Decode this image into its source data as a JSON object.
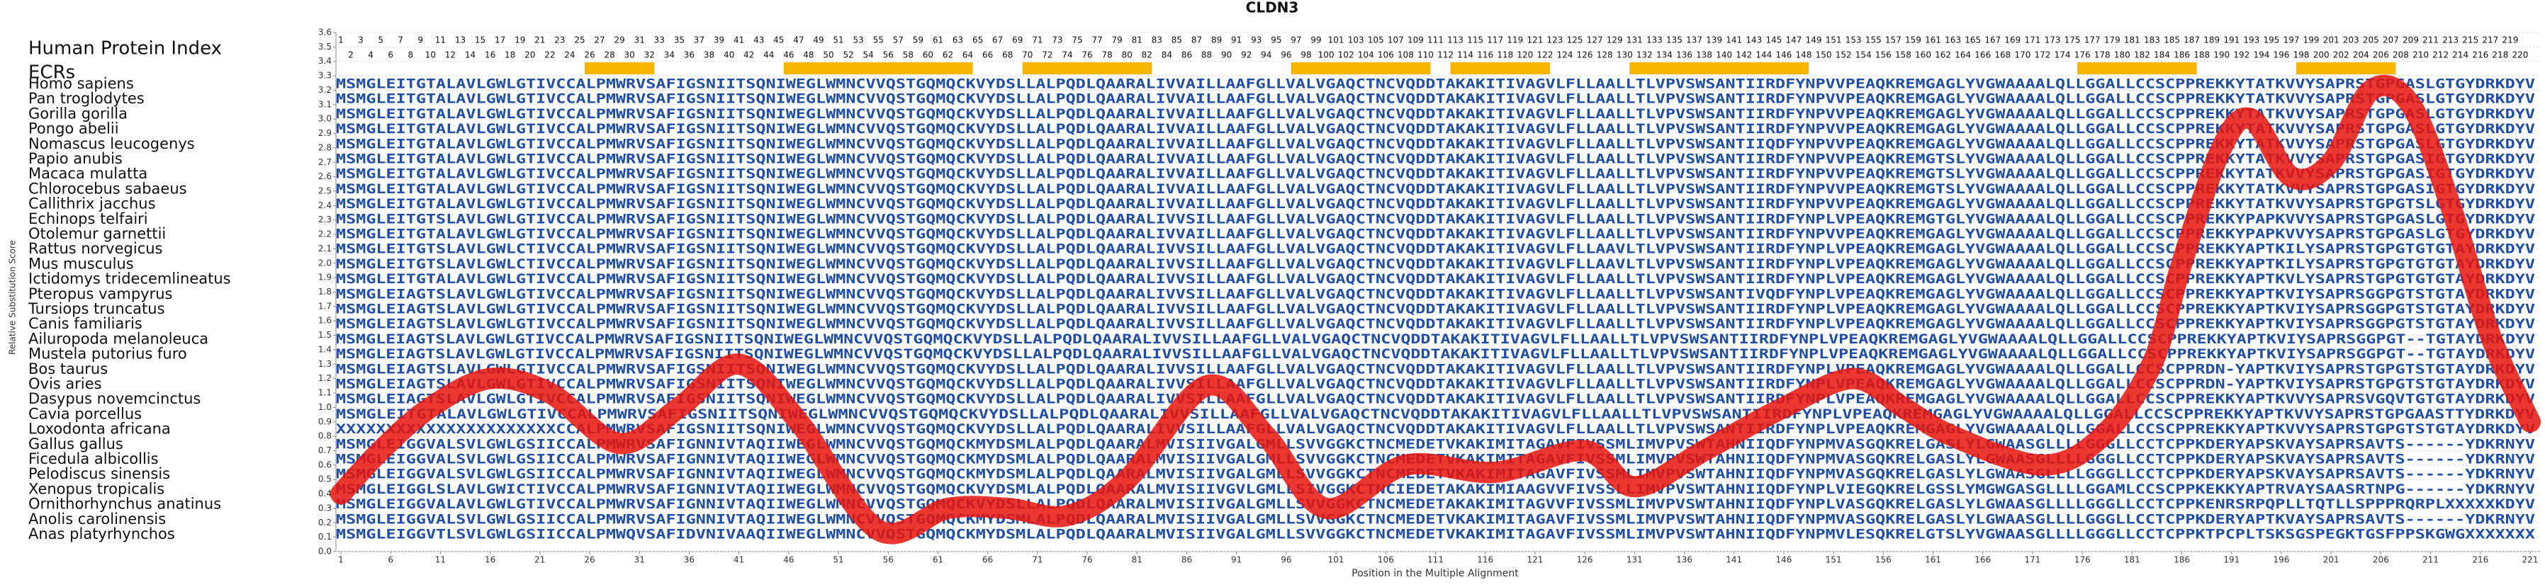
{
  "chart_data": {
    "type": "line",
    "title": "CLDN3",
    "x_label": "Position in the Multiple Alignment",
    "y_label": "Relative Substitution Score",
    "xlim": [
      1,
      221
    ],
    "ylim": [
      0,
      3.6
    ],
    "xticks": [
      1,
      6,
      11,
      16,
      21,
      26,
      31,
      36,
      41,
      46,
      51,
      56,
      61,
      66,
      71,
      76,
      81,
      86,
      91,
      96,
      101,
      106,
      111,
      116,
      121,
      126,
      131,
      136,
      141,
      146,
      151,
      156,
      161,
      166,
      171,
      176,
      181,
      186,
      191,
      196,
      201,
      206,
      211,
      216,
      221
    ],
    "yticks": [
      {
        "value": 0,
        "label": "0.0"
      },
      0.1,
      0.2,
      0.3,
      0.4,
      0.5,
      0.6,
      0.7,
      0.8,
      0.9,
      {
        "value": 1,
        "label": "1.0"
      },
      1.1,
      1.2,
      1.3,
      1.4,
      1.5,
      1.6,
      1.7,
      1.8,
      1.9,
      {
        "value": 2,
        "label": "2.0"
      },
      2.1,
      2.2,
      2.3,
      2.4,
      2.5,
      2.6,
      2.7,
      2.8,
      2.9,
      {
        "value": 3,
        "label": "3.0"
      },
      3.1,
      3.2,
      3.3,
      3.4,
      3.5,
      3.6
    ],
    "grid": true,
    "series": [
      {
        "color": "#e8140c",
        "x": [
          1,
          5,
          10,
          16,
          22,
          29,
          35,
          41,
          47,
          55,
          62,
          68,
          74,
          80,
          88,
          94,
          100,
          108,
          117,
          126,
          131,
          138,
          146,
          153,
          158,
          163,
          172,
          178,
          183,
          186,
          190,
          193,
          197,
          201,
          205,
          209,
          213,
          217,
          221
        ],
        "values": [
          0.4,
          0.7,
          1.0,
          1.2,
          1.1,
          0.75,
          1.0,
          1.3,
          0.9,
          0.15,
          0.3,
          0.3,
          0.25,
          0.5,
          1.15,
          0.8,
          0.3,
          0.6,
          0.55,
          0.7,
          0.45,
          0.7,
          1.0,
          1.2,
          1.0,
          0.8,
          0.6,
          0.8,
          1.3,
          2.0,
          2.8,
          3.0,
          2.6,
          2.7,
          3.2,
          3.1,
          2.4,
          1.5,
          0.9
        ]
      }
    ],
    "protein_index_label": "Human Protein Index",
    "protein_index": [
      1,
      2,
      3,
      4,
      5,
      6,
      7,
      8,
      9,
      10,
      11,
      12,
      13,
      14,
      15,
      16,
      17,
      18,
      19,
      20,
      21,
      22,
      23,
      24,
      25,
      26,
      27,
      28,
      29,
      30,
      31,
      32,
      33,
      34,
      35,
      36,
      37,
      38,
      39,
      40,
      41,
      42,
      43,
      44,
      45,
      46,
      47,
      48,
      49,
      50,
      51,
      52,
      53,
      54,
      55,
      56,
      57,
      58,
      59,
      60,
      61,
      62,
      63,
      64,
      65,
      66,
      67,
      68,
      69,
      70,
      71,
      72,
      73,
      74,
      75,
      76,
      77,
      78,
      79,
      80,
      81,
      82,
      83,
      84,
      85,
      86,
      87,
      88,
      89,
      90,
      91,
      92,
      93,
      94,
      95,
      96,
      97,
      98,
      99,
      100,
      101,
      102,
      103,
      104,
      105,
      106,
      107,
      108,
      109,
      110,
      111,
      112,
      113,
      114,
      115,
      116,
      117,
      118,
      119,
      120,
      121,
      122,
      123,
      124,
      125,
      126,
      127,
      128,
      129,
      130,
      131,
      132,
      133,
      134,
      135,
      136,
      137,
      138,
      139,
      140,
      141,
      142,
      143,
      144,
      145,
      146,
      147,
      148,
      149,
      150,
      151,
      152,
      153,
      154,
      155,
      156,
      157,
      158,
      159,
      160,
      161,
      162,
      163,
      164,
      165,
      166,
      167,
      168,
      169,
      170,
      171,
      172,
      173,
      174,
      175,
      176,
      177,
      178,
      179,
      180,
      181,
      182,
      183,
      184,
      185,
      186,
      187,
      188,
      189,
      190,
      191,
      192,
      193,
      194,
      195,
      196,
      197,
      198,
      199,
      200,
      201,
      202,
      203,
      204,
      205,
      206,
      207,
      208,
      209,
      210,
      211,
      212,
      213,
      214,
      215,
      216,
      217,
      218,
      219,
      220
    ],
    "ecr_label": "ECRs",
    "ecrs": [
      [
        26,
        32
      ],
      [
        46,
        64
      ],
      [
        70,
        82
      ],
      [
        97,
        110
      ],
      [
        113,
        122
      ],
      [
        131,
        148
      ],
      [
        176,
        187
      ],
      [
        198,
        207
      ]
    ],
    "alignment": [
      {
        "species": "Homo sapiens",
        "sequence": "MSMGLEITGTALAVLGWLGTIVCCALPMWRVSAFIGSNIITSQNIWEGLWMNCVVQSTGQMQCKVYDSLLALPQDLQAARALIVVAILLAAFGLLVALVGAQCTNCVQDDTAKAKITIVAGVLFLLAALLTLVPVSWSANTIIRDFYNPVVPEAQKREMGAGLYVGWAAAALQLLGGALLCCSCPPREKKYTATKVVYSAPRSTGPGASLGTGYDRKDYV"
      },
      {
        "species": "Pan troglodytes",
        "sequence": "MSMGLEITGTALAVLGWLGTIVCCALPMWRVSAFIGSNIITSQNIWEGLWMNCVVQSTGQMQCKVYDSLLALPQDLQAARALIVVAILLAAFGLLVALVGAQCTNCVQDDTAKAKITIVAGVLFLLAALLTLVPVSWSANTIIRDFYNPVVPEAQKREMGAGLYVGWAAAALQLLGGALLCCSCPPREKKYTATKVVYSAPRSTGPGASLGTGYDRKDYV"
      },
      {
        "species": "Gorilla gorilla",
        "sequence": "MSMGLEITGTALAVLGWLGTIVCCALPMWRVSAFIGSNIITSQNIWEGLWMNCVVQSTGQMQCKVYDSLLALPQDLQAARALIVVAILLAAFGLLVALVGAQCTNCVQDDTAKAKITIVAGVLFLLAALLTLVPVSWSANTIIRDFYNPVVPEAQKREMGAGLYVGWAAAALQLLGGALLCCSCPPREKKYTATKVVYSAPRSTGPGASLGTGYDRKDYV"
      },
      {
        "species": "Pongo abelii",
        "sequence": "MSMGLEITGTALAVLGWLGTIVCCALPMWRVSAFIGSNIITSQNIWEGLWMNCVVQSTGQMQCKVYDSLLALPQDLQAARALIVVAILLAAFGLLVALVGAQCTNCVQDDTAKAKITIVAGVLFLLAALLTLVPVSWSANTIIRDFYNPVVPEAQKREMGAGLYVGWAAAALQLLGGALLCCSCPPREKKYTATKVVYSAPRSTGPGASLGTGYDRKDYV"
      },
      {
        "species": "Nomascus leucogenys",
        "sequence": "MSMGLEITGTALAVLGWLGTIVCCALPMWRVSAFIGSNIITSQNIWEGLWMNCVVQSTGQMQCKVYDSLLALPQDLQAARALIVVAILLAAFGLLVALVGAQCTNCVQDDTAKAKITIVAGVLFLLAALLTLVPVSWSANTIIQDFYNPVVPEAQKREMGAGLYVGWAAAALQLLGGALLCCSCPPREKKYTATKVVYSAPRSTGPGASLGTGYDRKDYV"
      },
      {
        "species": "Papio anubis",
        "sequence": "MSMGLEITGTALAVLGWLGTIVCCALPMWRVSAFIGSNIITSQNIWEGLWMNCVVQSTGQMQCKVYDSLLALPQDLQAARALIVVAILLAAFGLLVALVGAQCTNCVQDDTAKAKITIVAGVLFLLAALLTLVPVSWSANTIIRDFYNPVVPEAQKREMGTSLYVGWAAAALQLLGGALLCCSCPPREKKYTATKVVYSAPRSTGPGASIGTGYDRKDYV"
      },
      {
        "species": "Macaca mulatta",
        "sequence": "MSMGLEITGTALAVLGWLGTIVCCALPMWRVSAFIGSNIITSQNIWEGLWMNCVVQSTGQMQCKVYDSLLALPQDLQAARALIVVAILLAAFGLLVALVGAQCTNCVQDDTAKAKITIVAGVLFLLAALLTLVPVSWSANTIIRDFYNPVVPEAQKREMGTSLYVGWAAAALQLLGGALLCCSCPPREKKYTATKVVYSAPRSTGPGASIGTGYDRKDYV"
      },
      {
        "species": "Chlorocebus sabaeus",
        "sequence": "MSMGLEITGTALAVLGWLGTIVCCALPMWRVSAFIGSNIITSQNIWEGLWMNCVVQSTGQMQCKVYDSLLALPQDLQAARALIVVAILLAAFGLLVALVGAQCTNCVQDDTAKAKITIVAGVLFLLAALLTLVPVSWSANTIIRDFYNPVVPEAQKREMGTSLYVGWAAAALQLLGGALLCCSCPPREKKYTATKVVYSAPRSTGPGASIGTGYDRKDYV"
      },
      {
        "species": "Callithrix jacchus",
        "sequence": "MSMGLEITGTALAVLGWLGTIVCCALPMWRVSAFIGSNIITSQNIWEGLWMNCVVQSTGQMQCKVYDSLLALPQDLQAARALIVVAILLAAFGLLVALVGAQCTNCVQDDTAKAKITIVAGVLFLLAALLTLVPVSWSANTIIRDFYNPVVPEAQKREMGAGLYVGWAAAALQLLGGALLCCSCPPREKKYTATKVVYSAPRSTGPGTSLGTGYDRKDYV"
      },
      {
        "species": "Echinops telfairi",
        "sequence": "MSMGLEITGTSLAVLGWLGTIVCCALPMWRVSAFIGSNIITSQNIWEGLWMNCVVQSTGQMQCKVYDSLLALPQDLQAARALIVVSILLAAFGLLVALVGAQCTNCVQDDTAKAKITIVAGVLFLLAALLTLVPVSWSANTIIRDFYNPLVPEAQKREMGTGLYVGWAAAALQLLGGALLCCSCPPREKKYPAPKVVYSAPRSTGPGASLGTGYDRKDYV"
      },
      {
        "species": "Otolemur garnettii",
        "sequence": "MSMGLEITGTALAVLGWLGTIVCCALPMWRVSAFIGSNIITSQNIWEGLWMNCVVQSTGQMQCKVYDSLLALPQDLQAARALIVVAILLAAFGLLVALVGAQCTNCVQDDTAKAKITIVAGVLFLLAALLTLVPVSWSANTIIRDFYNPVVPEAQKREMGAGLYVGWAAAALQLLGGALLCCSCPPREKKYPAPKVVYSAPRSTGPGASLGTGYDRKDYV"
      },
      {
        "species": "Rattus norvegicus",
        "sequence": "MSMGLEITGTSLAVLGWLCTIVCCALPMWRVSAFIGSNIITSQNIWEGLWMNCVVQSTGQMQCKVYDSLLALPQDLQAARALIVVSILLAAFGLLVALVGAQCTNCVQDDTAKAKITIVAGVLFLLAAVLTLVPVSWSANTIIRDFYNPLVPEAQKREMGAGLYVGWAAAALQLLGGALLCCSCPPREKKYAPTKILYSAPRSTGPGTGTGTAYDRKDYV"
      },
      {
        "species": "Mus musculus",
        "sequence": "MSMGLEITGTSLAVLGWLCTIVCCALPMWRVSAFIGSNIITSQNIWEGLWMNCVVQSTGQMQCKVYDSLLALPQDLQAARALIVVSILLAAFGLLVALVGAQCTNCVQDDTAKAKITIVAGVLFLLAAVLTLVPVSWSANTIIRDFYNPLVPEAQKREMGAGLYVGWAAAALQLLGGALLCCSCPPREKKYAPTKILYSAPRSTGPGTGTGTAYDRKDYV"
      },
      {
        "species": "Ictidomys tridecemlineatus",
        "sequence": "MSMGLEITGTALAVLGWLGTIVCCALPMWRVSAFIGSNIITSQNIWEGLWMNCVVQSTGQMQCKVYDSLLALPQDLQAARALIVVSILLAAFGLLVALVGAQCTNCVQDDTAKAKITIVAGVLFLLAALLTLVPVSWSANTIIRDFYNPLVPEAQKREMGAGLYVGWAAAALQLLGGALLCCSCPPREKKYAPTKVLYSAPRSTGPGTGTGTAYDRKDYV"
      },
      {
        "species": "Pteropus vampyrus",
        "sequence": "MSMGLEIAGTSLAVLGWLGTIVCCALPMWRVSAFIGSNIITSQNIWEGLWMNCVVQSTGQMQCKVYDSLLALPQDLQAARALIVVSILLAAFGLLVALVGAQCTNCVQDDTAKAKITIVAGVLFLLAALLTLVPVSWSANTIVQDFYNPLVPEAQKREMGAGLYVGWAAAALQLLGGALLCCSCPPREKKYAPTKVIYSAPRSGGPGTSTGTAYDRKDYV"
      },
      {
        "species": "Tursiops truncatus",
        "sequence": "MSMGLEIAGTSLAVLGWLGTIVCCALPMWRVSAFIGSNIITSQNIWEGLWMNCVVQSTGQMQCKVYDSLLALPQDLQAARALIVVSILLAAFGLLVALVGAQCTNCVQDDTAKAKITIVAGVLFLLAALLTLVPVSWSANTIIRDFYNPLVPEAQKREMGAGLYVGWAAAALQLLGGALLCCSCPPREKKYAPTKVIYSAPRSGGPGTSTGTAYDRKDYV"
      },
      {
        "species": "Canis familiaris",
        "sequence": "MSMGLEIAGTSLAVLGWLGTIVCCALPMWRVSAFIGSNIITSQNIWEGLWMNCVVQSTGQMQCKVYDSLLALPQDLQAARALIVVSILLAAFGLLVALVGAQCTNCVQDDTAKAKITIVAGVLFLLAALLTLVPVSWSANTIIRDFYNPLVPEAQKREMGAGLYVGWAAAALQLLGGALLCCSCPPREKKYAPTKVIYSAPRSGGPGTSTGTAYDRKDYV"
      },
      {
        "species": "Ailuropoda melanoleuca",
        "sequence": "MSMGLEIAGTSLAVLGWLGTIVCCALPMWRVSAFIGSNIITSQNIWEGLWMNCVVQSTGQMQCKVYDSLLALPQDLQAARALIVVSILLAAFGLLVALVGAQCTNCVQDDTAKAKITIVAGVLFLLAALLTLVPVSWSANTIIRDFYNPLVPEAQKREMGAGLYVGWAAAALQLLGGALLCCSCPPREKKYAPTKVIYSAPRSGGPGT--TGTAYDRKDYV"
      },
      {
        "species": "Mustela putorius furo",
        "sequence": "MSMGLEIAGTSLAVLGWLGTIVCCALPMWRVSAFIGSNIITSQNIWEGLWMNCVVQSTGQMQCKVYDSLLALPQDLQAARALIVVSILLAAFGLLVALVGAQCTNCVQDDTAKAKITIVAGVLFLLAALLTLVPVSWSANTIIRDFYNPLVPEAQKREMGAGLYVGWAAAALQLLGGALLCCSCPPREKKYAPTKVIYSAPRSGGPGT--TGTAYDRKDYV"
      },
      {
        "species": "Bos taurus",
        "sequence": "MSMGLEIAGTSLAVLGWLGTIVCCALPMWRVSAFIGSNIITSQNIWEGLWMNCVVQSTGQMQCKVYDSLLALPQDLQAARALIVVSILLAAFGLLVALVGAQCTNCVQDDTAKAKITIVAGVLFLLAALLTLVPVSWSANTIIRDFYNPLVPEAQKREMGAGLYVGWAAAALQLLGGALLCCSCPPRDN-YAPTKVIYSAPRSTGPGTSTGTAYDRKDYV"
      },
      {
        "species": "Ovis aries",
        "sequence": "MSMGLEIAGTSLAVLGWLGTIVCCALPMWRVSAFIGSNIITSQNIWEGLWMNCVVQSTGQMQCKVYDSLLALPQDLQAARALIVVSILLAAFGLLVALVGAQCTNCVQDDTAKAKITIVAGVLFLLAALLTLVPVSWSANTIIRDFYNPLVPEAQKREMGAGLYVGWAAAALQLLGGALLCCSCPPRDN-YAPTKVIYSAPRSTGPGTSTGTAYDRKDYV"
      },
      {
        "species": "Dasypus novemcinctus",
        "sequence": "MSMGLEIAGTSLAVLGWLGTIVCCALPMWRVSAFIGSNIITSQNIWEGLWMNCVVQSTGQMQCKVYDSLLALPQDLQAARALIVVSILLAAFGLLVALVGAQCTNCVQDDTAKAKITIVAGVLFLLAALLTLVPVSWSANTIIRDFYNPLVPEAQKREMGAGLYVGWAAAALQLLGGALLCCSCPPREKKYAPTKVVYSAPRSVGQVTGTGTAYDRKDYV"
      },
      {
        "species": "Cavia porcellus",
        "sequence": "MSMGLEITGTALAVLGWLGTIVCCALPMWRVSAFIGSNIITSQNIWEGLWMNCVVQSTGQMQCKVYDSLLALPQDLQAARALIVVSILLAAFGLLVALVGAQCTNCVQDDTAKAKITIVAGVLFLLAALLTLVPVSWSANTIIRDFYNPLVPEAQKREMGAGLYVGWAAAALQLLGGALLCCSCPPREKKYAPTKVVYSAPRSTGPGAASTTYDRKDYV"
      },
      {
        "species": "Loxodonta africana",
        "sequence": "XXXXXXXXXXXXXXXXXXXXXXCCALPMWRVSAFIGSNIITSQNIWEGLWMNCVVQSTGQMQCKVYDSLLALPQDLQAARALIVVSILLAAFGLLVALVGAQCTNCVQDDTAKAKITIVAGVLFLLAALLTLVPVSWSANTIIRDFYNPLVPEAQKREMGAGLYVGWAAAALQLLGGALLCCSCPPREKKYAPTKVVYSAPRSTGPGTSTGTAYDRKDYV"
      },
      {
        "species": "Gallus gallus",
        "sequence": "MSMGLEIGGVALSVLGWLGSIICCALPMWRVSAFIGNNIVTAQIIWEGLWMNCVVQSTGQMQCKMYDSMLALPQDLQAARALMVISIIVGALGMLLSVVGGKCTNCMEDETVKAKIMITAGAVFIVSSMLIMVPVSWTAHNIIQDFYNPMVASGQKRELGASLYLGWAASGLLLLGGGLLCCTCPPKDERYAPSKVAYSAPRSAVTS------YDKRNYV"
      },
      {
        "species": "Ficedula albicollis",
        "sequence": "MSMGLEIGGVALSVLGWLGSIICCALPMWRVSAFIGNNIVTAQIIWEGLWMNCVVQSTGQMQCKMYDSMLALPQDLQAARALMVISIIVGALGMLLSVVGGKCTNCMEDETVKAKIMITAGAVFIVSSMLIMVPVSWTAHNIIQDFYNPMVASGQKRELGASLYLGWAASGLLLLGGGLLCCTCPPKDERYAPSKVAYSAPRSAVTS------YDKRNYV"
      },
      {
        "species": "Pelodiscus sinensis",
        "sequence": "MSMGLEIGGVALSVLGWLGSIICCALPMWRVSAFIGNNIVTAQIIWEGLWMNCVVQSTGQMQCKMYDSMLALPQDLQAARALMVISIIVGALGMLLSVVGGKCTNCMEDETVKAKIMITAGAVFIVSSMLIMVPVSWTAHNIIQDFYNPMVASGQKRELGASLYLGWAASGLLLLGGGLLCCTCPPKDERYAPSKVAYSAPRSAVTS------YDKRNYV"
      },
      {
        "species": "Xenopus tropicalis",
        "sequence": "MSMGLEIGGLSLAVLGWICTIVCCALPMWRVSAFIGNNIVTAQIIWEGLWMNCVVQSTGQMQCKVYDSMLALPQDLQAARALMVISIIVGVLGMLLSIVGGKCTNCIEDETAKAKIMIAAGVVFIVSSLLIMVPVSWTAHNIIQDFYNPLVIEGQKRELGSSLYMGWGASGLLLLGGAMLCCSCPPKEKKYAPTRVAYSAASRTNPG------YDKRNYV"
      },
      {
        "species": "Ornithorhynchus anatinus",
        "sequence": "MSMGLEIGGVALAVLGWLGTIVCCALPMWRVSAFIGNNIVTAQIIWEGLWMNCVVQSTGQMQCKVYDSLLALPQDLQAARALMVISIIVGALGMLLSVVGGKCTNCMEDETAKAKIMITAGVVFIVSSMLIMVPVSWTAHNIIQDFYNPLVASGQKRELGASLYLGWAASGLLLLGGGLLCCTCPPKENRSRPQPLLTQTLLSPPPRQRPLXXXXXKDYV"
      },
      {
        "species": "Anolis carolinensis",
        "sequence": "MSMGLEIGGVALSVLGWLGSIICCALPMWRVSAFIGNNIVTAQIIWEGLWMNCVVQSTGQMQCKMYDSMLALPQDLQAARALMVISIIVGALGMLLSVVGGKCTNCMEDETVKAKIMITAGAVFIVSSMLIMVPVSWTAHNIIQDFYNPMVASGQKRELGASLYLGWAASGLLLLGGGLLCCTCPPKDERYAPTKVAYSAPRSAVTS------YDKRNYV"
      },
      {
        "species": "Anas platyrhynchos",
        "sequence": "MSMGLEIGGVTLSVLGWLGSIICCALPMWQVSAFIDVNIVAAQIIWEGLWMNCVVQSTGQMQCKMYDSMLALPQDLQAARALMVISIIVGALGMLLSVVGGKCTNCMEDETVKAKIMITAGAVFIVSSMLIMVPVSWTAHNIIQDFYNPMVLESQKRELGTSLYVGWAASGLLLLGGGLLCCTCPPKTPCPLTSKSGSPEGKTGSFPPSKGWGXXXXXXX"
      }
    ]
  }
}
